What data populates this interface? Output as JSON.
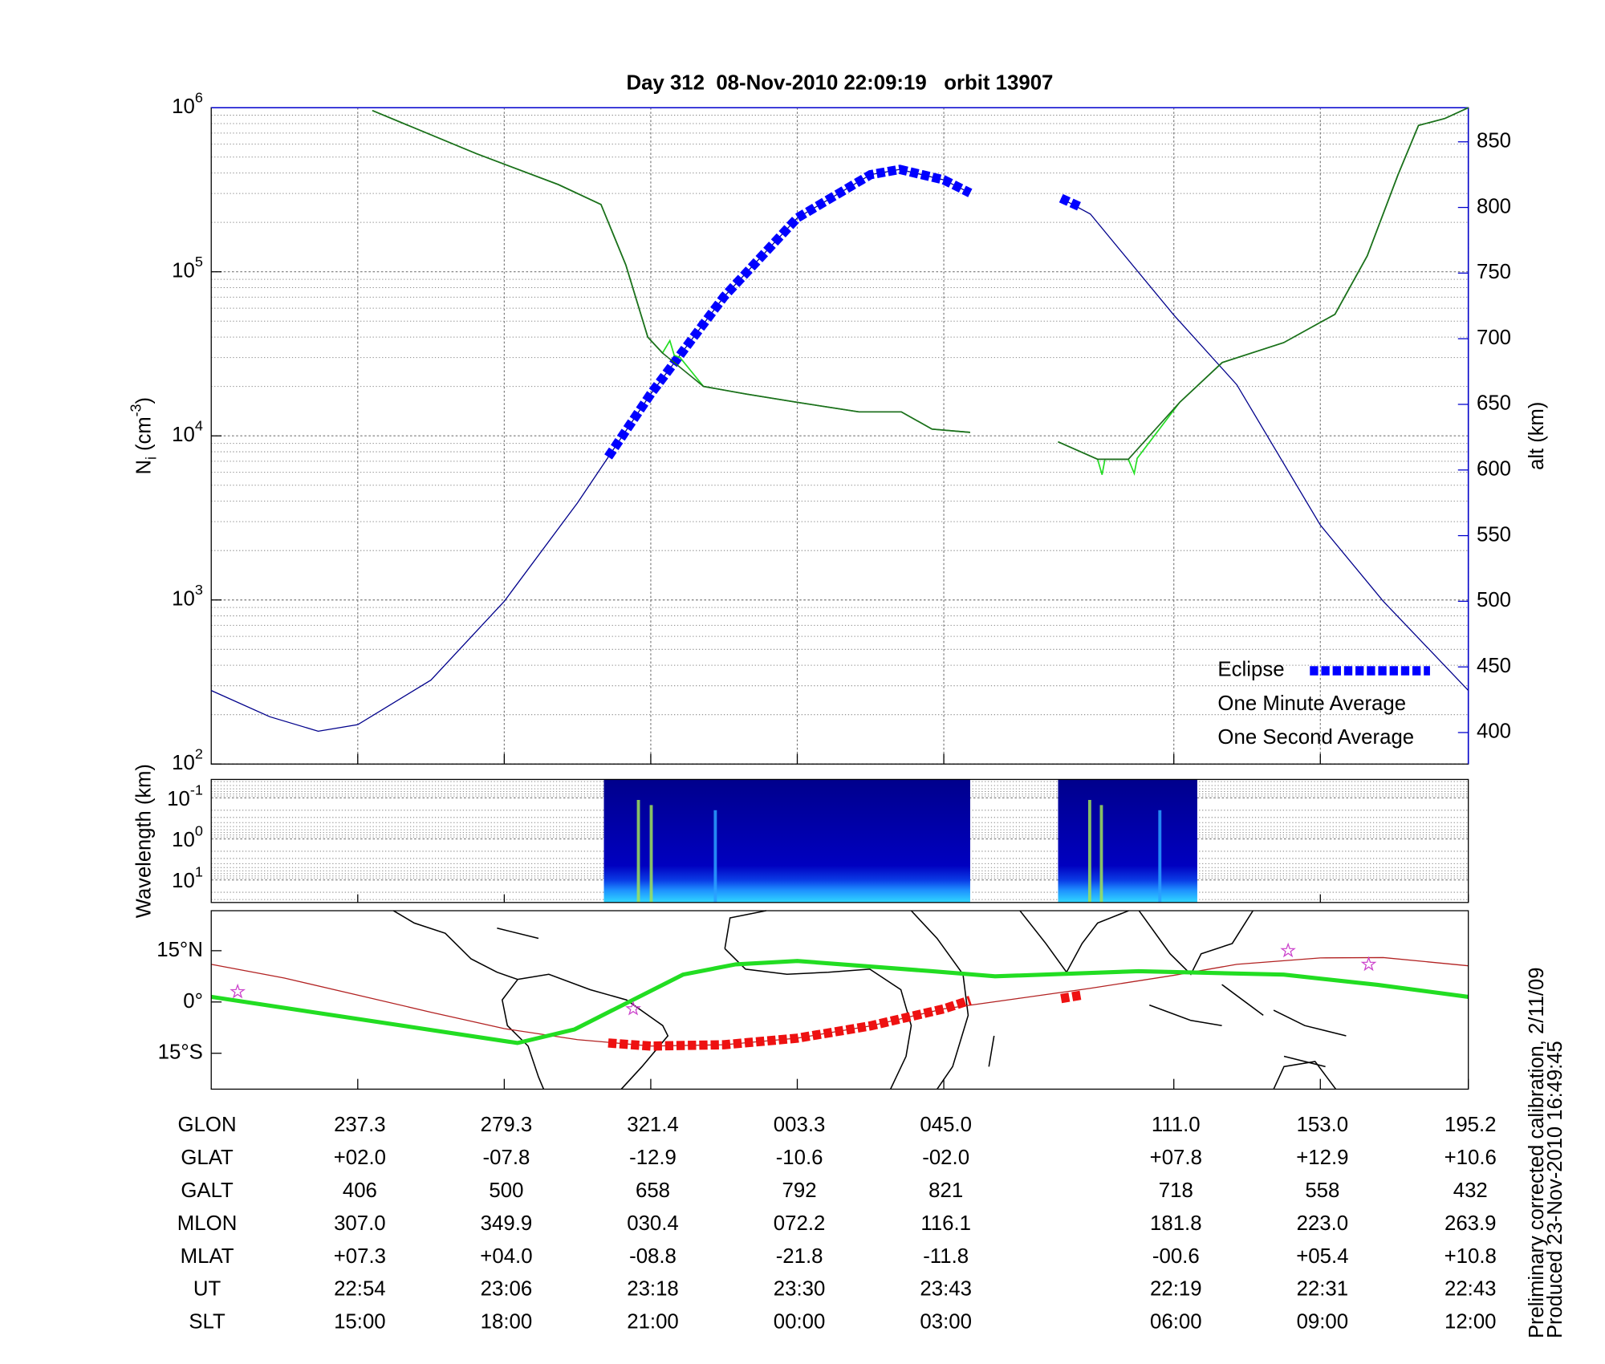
{
  "chart_data": [
    {
      "type": "line",
      "title": "Day 312  08-Nov-2010 22:09:19   orbit 13907",
      "ylabel": [
        "N",
        "i",
        " (cm",
        "-3",
        ")"
      ],
      "y2label": "alt (km)",
      "xlim": [
        0,
        8.58
      ],
      "xticks": [
        1,
        2,
        3,
        4,
        5,
        6.57,
        7.57,
        8.58
      ],
      "ylim": [
        100,
        1000000
      ],
      "log_y": true,
      "yticks": [
        {
          "value": 100,
          "label": "10",
          "exponent": "2"
        },
        {
          "value": 1000,
          "label": "10",
          "exponent": "3"
        },
        {
          "value": 10000,
          "label": "10",
          "exponent": "4"
        },
        {
          "value": 100000,
          "label": "10",
          "exponent": "5"
        },
        {
          "value": 1000000,
          "label": "10",
          "exponent": "6"
        }
      ],
      "y2lim": [
        376,
        876
      ],
      "y2ticks": [
        400,
        450,
        500,
        550,
        600,
        650,
        700,
        750,
        800,
        850
      ],
      "y2color": "#0000cc",
      "grid": true,
      "legend": "lower right",
      "series": [
        {
          "axis": "y2",
          "color": "#00008b",
          "x": [
            0,
            0.4,
            0.73,
            1,
            1.5,
            2,
            2.5,
            3,
            3.5,
            4,
            4.5,
            4.7,
            5,
            5.18,
            null,
            5.8,
            6,
            6.57,
            7,
            7.57,
            8,
            8.58
          ],
          "values": [
            432,
            412,
            401,
            406,
            440,
            500,
            575,
            658,
            732,
            792,
            825,
            829,
            821,
            811,
            null,
            807,
            795,
            718,
            665,
            558,
            500,
            432
          ]
        },
        {
          "name": "Eclipse",
          "axis": "y2",
          "color": "#0000ff",
          "label_color": "#0000ff",
          "style": "eclipse",
          "x": [
            2.71,
            3,
            3.5,
            4,
            4.5,
            4.7,
            5,
            5.18,
            null,
            5.8,
            5.94
          ],
          "values": [
            610,
            658,
            732,
            792,
            825,
            829,
            821,
            811,
            null,
            807,
            800
          ]
        },
        {
          "name": "One Minute Average",
          "color": "#1e6b1e",
          "label_color": "#000000",
          "x": [
            1.1,
            1.81,
            2.37,
            2.66,
            2.83,
            2.98,
            3.08,
            3.36,
            3.65,
            4.0,
            4.42,
            4.71,
            4.92,
            5.18,
            null,
            5.78,
            6.05,
            6.26,
            6.61,
            6.9,
            7.32,
            7.67,
            7.89,
            8.1,
            8.24,
            8.42,
            8.58
          ],
          "values": [
            960000,
            525000,
            340000,
            257000,
            110000,
            40000,
            32000,
            20000,
            18000,
            16000,
            14000,
            14000,
            11000,
            10500,
            null,
            9200,
            7200,
            7200,
            16000,
            28000,
            37000,
            55000,
            125000,
            390000,
            780000,
            860000,
            1000000
          ]
        },
        {
          "name": "One Second Average",
          "color": "#22dd22",
          "label_color": "#22dd22",
          "x": [
            1.1,
            1.81,
            2.37,
            2.66,
            2.83,
            2.98,
            3.08,
            3.13,
            3.16,
            3.2,
            3.36,
            3.65,
            4.0,
            4.42,
            4.71,
            4.92,
            5.18,
            null,
            5.78,
            6.05,
            6.08,
            6.1,
            6.26,
            6.3,
            6.32,
            6.61,
            6.9,
            7.32,
            7.67,
            7.89,
            8.1,
            8.24,
            8.42,
            8.58
          ],
          "values": [
            960000,
            525000,
            340000,
            257000,
            110000,
            40000,
            32000,
            38000,
            31000,
            30000,
            20000,
            18000,
            16000,
            14000,
            14000,
            11000,
            10500,
            null,
            9200,
            7200,
            5800,
            7200,
            7200,
            5900,
            7300,
            16000,
            28000,
            37000,
            55000,
            125000,
            390000,
            780000,
            860000,
            1000000
          ]
        }
      ]
    },
    {
      "type": "heatmap",
      "ylabel": "Wavelength (km)",
      "xlim": [
        0,
        8.58
      ],
      "ylim": [
        0.0355,
        35.5
      ],
      "log_y": true,
      "inverted": true,
      "yticks": [
        {
          "value": 0.1,
          "label": "10",
          "exponent": "-1"
        },
        {
          "value": 1,
          "label": "10",
          "exponent": "0"
        },
        {
          "value": 10,
          "label": "10",
          "exponent": "1"
        }
      ],
      "blocks": [
        [
          2.68,
          5.18
        ],
        [
          5.78,
          6.73
        ]
      ]
    },
    {
      "type": "map",
      "xlim": [
        0,
        8.58
      ],
      "ylim": [
        -25.5,
        26.7
      ],
      "yticks": [
        {
          "value": 15,
          "label": "15°N"
        },
        {
          "value": 0,
          "label": "0°"
        },
        {
          "value": -15,
          "label": "15°S"
        }
      ],
      "series": [
        {
          "color": "#b22222",
          "x": [
            0,
            0.5,
            1,
            1.5,
            2,
            2.5,
            3,
            3.5,
            4,
            4.5,
            5,
            5.5,
            6,
            6.57,
            7,
            7.57,
            8,
            8.58
          ],
          "values": [
            11,
            7,
            2,
            -3,
            -7.8,
            -11,
            -12.9,
            -12.5,
            -10.6,
            -7,
            -2,
            1,
            4,
            7.8,
            11,
            12.9,
            13,
            10.6
          ]
        },
        {
          "color": "#22dd22",
          "style": "thick",
          "x": [
            0,
            2.09,
            2.48,
            3.22,
            3.58,
            4,
            4.92,
            5.35,
            6.33,
            7.32,
            7.96,
            8.58
          ],
          "values": [
            1.5,
            -12,
            -8,
            8,
            11,
            12,
            9,
            7.5,
            9,
            8,
            5,
            1.5
          ]
        },
        {
          "color": "#ee1111",
          "style": "eclipse",
          "x": [
            2.71,
            3,
            3.5,
            4,
            4.5,
            5,
            5.18,
            null,
            5.8,
            5.94
          ],
          "values": [
            -12,
            -12.9,
            -12.5,
            -10.6,
            -7,
            -2,
            0.5,
            null,
            1,
            2
          ]
        },
        {
          "color": "#cc44cc",
          "style": "star",
          "x": [
            0.18,
            2.88,
            7.35,
            7.9
          ],
          "values": [
            3,
            -2,
            15,
            11
          ]
        }
      ]
    }
  ],
  "table": {
    "rows": [
      {
        "label": "GLON",
        "cells": [
          "237.3",
          "279.3",
          "321.4",
          "003.3",
          "045.0",
          "111.0",
          "153.0",
          "195.2"
        ]
      },
      {
        "label": "GLAT",
        "cells": [
          "+02.0",
          "-07.8",
          "-12.9",
          "-10.6",
          "-02.0",
          "+07.8",
          "+12.9",
          "+10.6"
        ]
      },
      {
        "label": "GALT",
        "cells": [
          "406",
          "500",
          "658",
          "792",
          "821",
          "718",
          "558",
          "432"
        ]
      },
      {
        "label": "MLON",
        "cells": [
          "307.0",
          "349.9",
          "030.4",
          "072.2",
          "116.1",
          "181.8",
          "223.0",
          "263.9"
        ]
      },
      {
        "label": "MLAT",
        "cells": [
          "+07.3",
          "+04.0",
          "-08.8",
          "-21.8",
          "-11.8",
          "-00.6",
          "+05.4",
          "+10.8"
        ]
      },
      {
        "label": "UT",
        "cells": [
          "22:54",
          "23:06",
          "23:18",
          "23:30",
          "23:43",
          "22:19",
          "22:31",
          "22:43"
        ]
      },
      {
        "label": "SLT",
        "cells": [
          "15:00",
          "18:00",
          "21:00",
          "00:00",
          "03:00",
          "06:00",
          "09:00",
          "12:00"
        ]
      }
    ]
  },
  "notes": [
    "Preliminary corrected calibration, 2/11/09",
    "Produced 23-Nov-2010 16:49:45"
  ]
}
